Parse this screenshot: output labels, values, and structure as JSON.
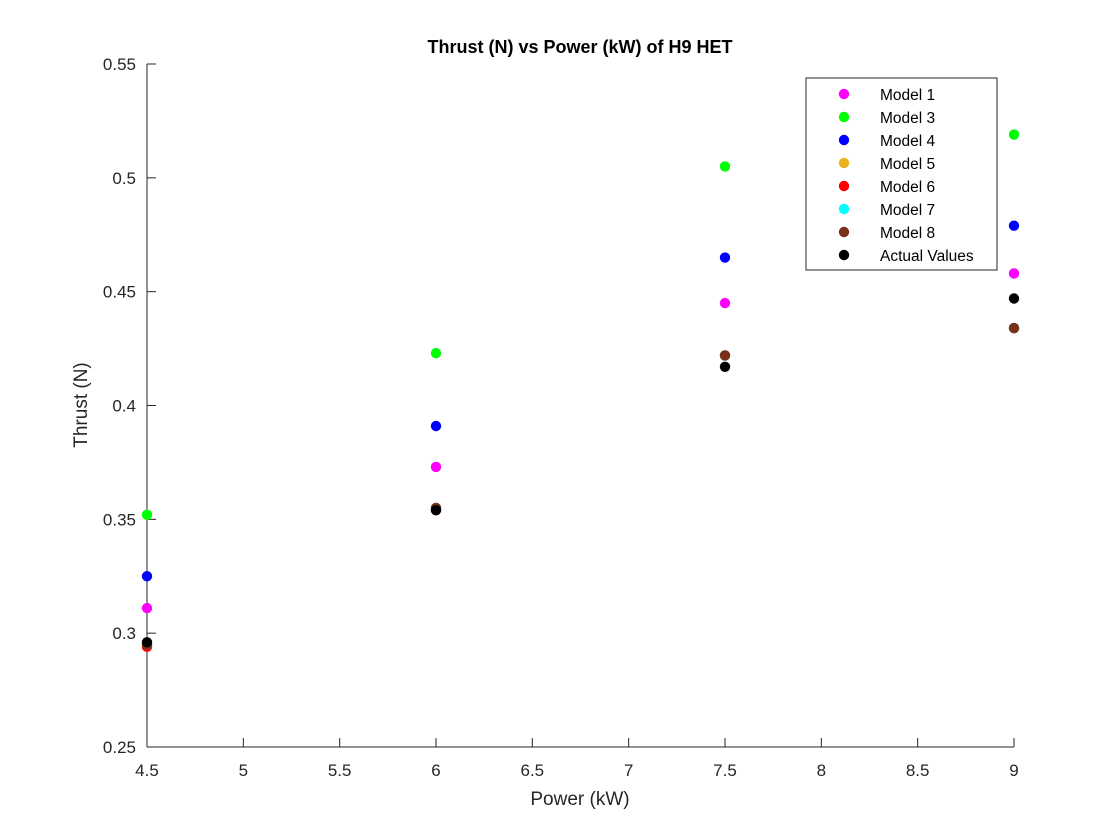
{
  "chart_data": {
    "type": "scatter",
    "title": "Thrust (N) vs Power (kW) of H9 HET",
    "xlabel": "Power (kW)",
    "ylabel": "Thrust (N)",
    "xlim": [
      4.5,
      9
    ],
    "ylim": [
      0.25,
      0.55
    ],
    "x_ticks": [
      "4.5",
      "5",
      "5.5",
      "6",
      "6.5",
      "7",
      "7.5",
      "8",
      "8.5",
      "9"
    ],
    "y_ticks": [
      "0.25",
      "0.3",
      "0.35",
      "0.4",
      "0.45",
      "0.5",
      "0.55"
    ],
    "grid": false,
    "legend_position": "top-right",
    "x": [
      4.5,
      6,
      7.5,
      9
    ],
    "series": [
      {
        "name": "Model 1",
        "color": "#ff00ff",
        "values": [
          0.311,
          0.373,
          0.445,
          0.458
        ]
      },
      {
        "name": "Model 3",
        "color": "#00ff00",
        "values": [
          0.352,
          0.423,
          0.505,
          0.519
        ]
      },
      {
        "name": "Model 4",
        "color": "#0000ff",
        "values": [
          0.325,
          0.391,
          0.465,
          0.479
        ]
      },
      {
        "name": "Model 5",
        "color": "#edb120",
        "values": [
          0.295,
          0.355,
          0.422,
          0.434
        ]
      },
      {
        "name": "Model 6",
        "color": "#ff0000",
        "values": [
          0.294,
          0.354,
          0.422,
          0.434
        ]
      },
      {
        "name": "Model 7",
        "color": "#00ffff",
        "values": [
          0.295,
          0.355,
          0.422,
          0.434
        ]
      },
      {
        "name": "Model 8",
        "color": "#77301a",
        "values": [
          0.295,
          0.355,
          0.422,
          0.434
        ]
      },
      {
        "name": "Actual Values",
        "color": "#000000",
        "values": [
          0.296,
          0.354,
          0.417,
          0.447
        ]
      }
    ]
  }
}
